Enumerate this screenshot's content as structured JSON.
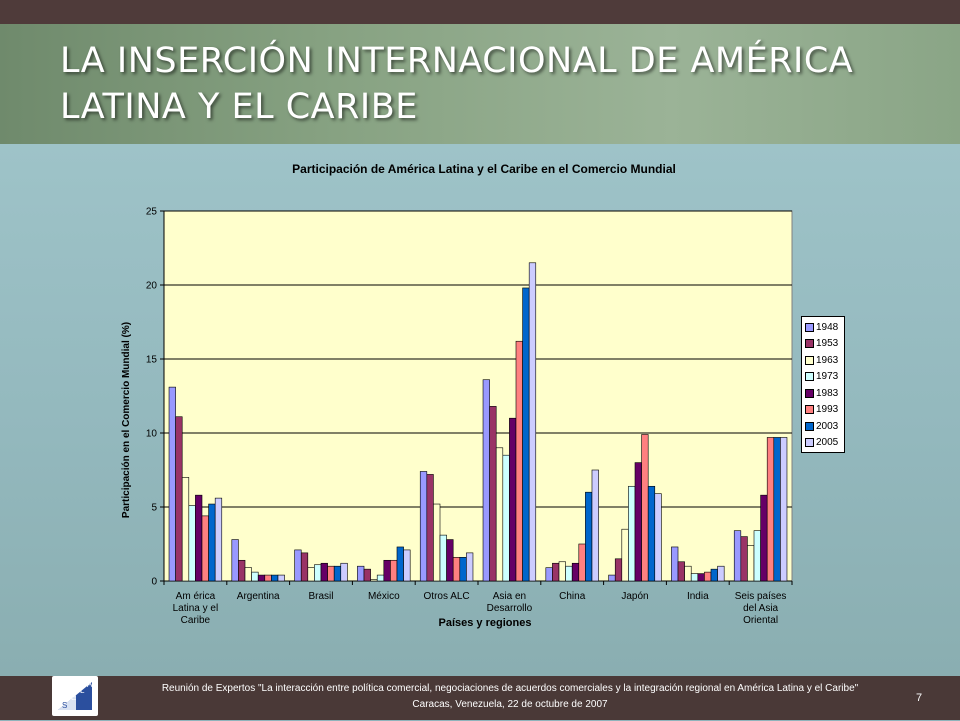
{
  "slide": {
    "title_line1": "LA INSERCIÓN INTERNACIONAL DE AMÉRICA",
    "title_line2": "LATINA Y EL CARIBE",
    "footer_line1": "Reunión de Expertos \"La interacción entre política comercial, negociaciones de acuerdos comerciales y la integración regional en América Latina y el Caribe\"",
    "footer_line2": "Caracas, Venezuela, 22 de octubre de 2007",
    "page_number": "7",
    "logo_letters": [
      "S",
      "E",
      "L",
      "A"
    ]
  },
  "chart_data": {
    "type": "bar",
    "title": "Participación de América Latina y el Caribe en el Comercio Mundial",
    "ylabel": "Participación en el Comercio Mundial (%)",
    "xlabel": "Países y regiones",
    "ylim": [
      0,
      25
    ],
    "yticks": [
      0,
      5,
      10,
      15,
      20,
      25
    ],
    "grid": true,
    "legend_position": "right",
    "plot_background": "#ffffcc",
    "categories": [
      [
        "Am érica",
        "Latina y el",
        "Caribe"
      ],
      [
        "Argentina"
      ],
      [
        "Brasil"
      ],
      [
        "México"
      ],
      [
        "Otros ALC"
      ],
      [
        "Asia en",
        "Desarrollo"
      ],
      [
        "China"
      ],
      [
        "Japón"
      ],
      [
        "India"
      ],
      [
        "Seis países",
        "del Asia",
        "Oriental"
      ]
    ],
    "series": [
      {
        "name": "1948",
        "color": "#9999ff",
        "values": [
          13.1,
          2.8,
          2.1,
          1.0,
          7.4,
          13.6,
          0.9,
          0.4,
          2.3,
          3.4
        ]
      },
      {
        "name": "1953",
        "color": "#993366",
        "values": [
          11.1,
          1.4,
          1.9,
          0.8,
          7.2,
          11.8,
          1.2,
          1.5,
          1.3,
          3.0
        ]
      },
      {
        "name": "1963",
        "color": "#ffffcc",
        "values": [
          7.0,
          0.9,
          0.9,
          0.1,
          5.2,
          9.0,
          1.3,
          3.5,
          1.0,
          2.4
        ]
      },
      {
        "name": "1973",
        "color": "#ccffff",
        "values": [
          5.1,
          0.6,
          1.1,
          0.4,
          3.1,
          8.5,
          1.0,
          6.4,
          0.5,
          3.4
        ]
      },
      {
        "name": "1983",
        "color": "#660066",
        "values": [
          5.8,
          0.4,
          1.2,
          1.4,
          2.8,
          11.0,
          1.2,
          8.0,
          0.5,
          5.8
        ]
      },
      {
        "name": "1993",
        "color": "#ff8080",
        "values": [
          4.4,
          0.4,
          1.0,
          1.4,
          1.6,
          16.2,
          2.5,
          9.9,
          0.6,
          9.7
        ]
      },
      {
        "name": "2003",
        "color": "#0066cc",
        "values": [
          5.2,
          0.4,
          1.0,
          2.3,
          1.6,
          19.8,
          6.0,
          6.4,
          0.8,
          9.7
        ]
      },
      {
        "name": "2005",
        "color": "#ccccff",
        "values": [
          5.6,
          0.4,
          1.2,
          2.1,
          1.9,
          21.5,
          7.5,
          5.9,
          1.0,
          9.7
        ]
      }
    ]
  }
}
